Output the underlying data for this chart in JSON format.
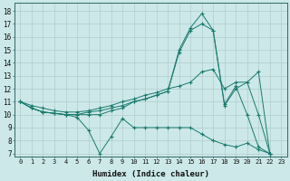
{
  "xlabel": "Humidex (Indice chaleur)",
  "bg_color": "#cce8e8",
  "grid_color": "#b0cccc",
  "line_color": "#1a7a6e",
  "xlim": [
    -0.5,
    23.5
  ],
  "ylim": [
    6.8,
    18.6
  ],
  "xticks": [
    0,
    1,
    2,
    3,
    4,
    5,
    6,
    7,
    8,
    9,
    10,
    11,
    12,
    13,
    14,
    15,
    16,
    17,
    18,
    19,
    20,
    21,
    22,
    23
  ],
  "yticks": [
    7,
    8,
    9,
    10,
    11,
    12,
    13,
    14,
    15,
    16,
    17,
    18
  ],
  "series1": [
    [
      0,
      11.0
    ],
    [
      1,
      10.5
    ],
    [
      2,
      10.2
    ],
    [
      3,
      10.1
    ],
    [
      4,
      10.0
    ],
    [
      5,
      9.8
    ],
    [
      6,
      8.8
    ],
    [
      7,
      7.0
    ],
    [
      8,
      8.3
    ],
    [
      9,
      9.7
    ],
    [
      10,
      9.0
    ],
    [
      11,
      9.0
    ],
    [
      12,
      9.0
    ],
    [
      13,
      9.0
    ],
    [
      14,
      9.0
    ],
    [
      15,
      9.0
    ],
    [
      16,
      8.5
    ],
    [
      17,
      8.0
    ],
    [
      18,
      7.7
    ],
    [
      19,
      7.5
    ],
    [
      20,
      7.8
    ],
    [
      21,
      7.3
    ],
    [
      22,
      7.0
    ]
  ],
  "series2": [
    [
      0,
      11.0
    ],
    [
      1,
      10.5
    ],
    [
      2,
      10.2
    ],
    [
      3,
      10.1
    ],
    [
      4,
      10.0
    ],
    [
      5,
      10.0
    ],
    [
      6,
      10.0
    ],
    [
      7,
      10.0
    ],
    [
      8,
      10.3
    ],
    [
      9,
      10.5
    ],
    [
      10,
      11.0
    ],
    [
      11,
      11.2
    ],
    [
      12,
      11.5
    ],
    [
      13,
      11.8
    ],
    [
      14,
      14.8
    ],
    [
      15,
      16.5
    ],
    [
      16,
      17.0
    ],
    [
      17,
      16.5
    ],
    [
      18,
      10.8
    ],
    [
      19,
      12.2
    ],
    [
      20,
      10.0
    ],
    [
      21,
      7.5
    ],
    [
      22,
      7.0
    ]
  ],
  "series3": [
    [
      0,
      11.0
    ],
    [
      1,
      10.5
    ],
    [
      2,
      10.2
    ],
    [
      3,
      10.1
    ],
    [
      4,
      10.0
    ],
    [
      5,
      10.0
    ],
    [
      6,
      10.2
    ],
    [
      7,
      10.3
    ],
    [
      8,
      10.5
    ],
    [
      9,
      10.7
    ],
    [
      10,
      11.0
    ],
    [
      11,
      11.2
    ],
    [
      12,
      11.5
    ],
    [
      13,
      11.8
    ],
    [
      14,
      15.0
    ],
    [
      15,
      16.7
    ],
    [
      16,
      17.8
    ],
    [
      17,
      16.5
    ],
    [
      18,
      10.7
    ],
    [
      19,
      12.0
    ],
    [
      20,
      12.5
    ],
    [
      21,
      10.0
    ],
    [
      22,
      7.0
    ]
  ],
  "series4": [
    [
      0,
      11.0
    ],
    [
      1,
      10.7
    ],
    [
      2,
      10.5
    ],
    [
      3,
      10.3
    ],
    [
      4,
      10.2
    ],
    [
      5,
      10.2
    ],
    [
      6,
      10.3
    ],
    [
      7,
      10.5
    ],
    [
      8,
      10.7
    ],
    [
      9,
      11.0
    ],
    [
      10,
      11.2
    ],
    [
      11,
      11.5
    ],
    [
      12,
      11.7
    ],
    [
      13,
      12.0
    ],
    [
      14,
      12.2
    ],
    [
      15,
      12.5
    ],
    [
      16,
      13.3
    ],
    [
      17,
      13.5
    ],
    [
      18,
      12.0
    ],
    [
      19,
      12.5
    ],
    [
      20,
      12.5
    ],
    [
      21,
      13.3
    ],
    [
      22,
      7.0
    ]
  ]
}
